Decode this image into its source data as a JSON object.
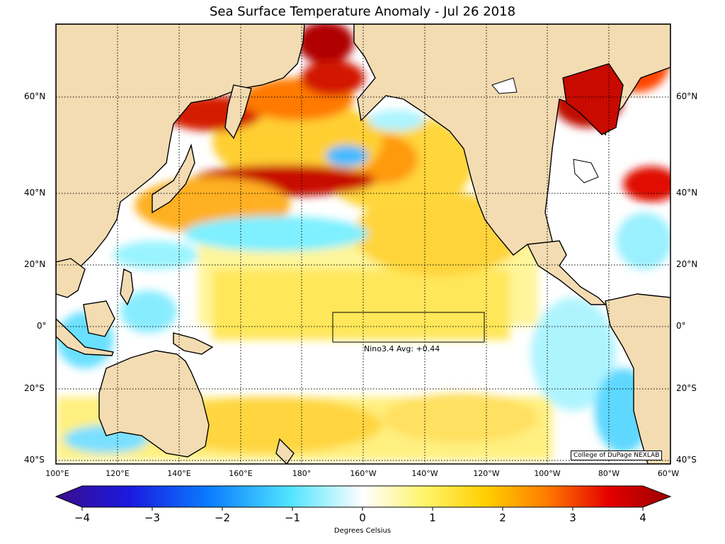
{
  "title": "Sea Surface Temperature Anomaly - Jul 26 2018",
  "lat_labels": [
    "60°N",
    "40°N",
    "20°N",
    "0°",
    "20°S",
    "40°S"
  ],
  "lon_labels": [
    "100°E",
    "120°E",
    "140°E",
    "160°E",
    "180°",
    "160°W",
    "140°W",
    "120°W",
    "100°W",
    "80°W",
    "60°W"
  ],
  "nino_label": "Nino3.4 Avg: +0.44",
  "credit": "College of DuPage NEXLAB",
  "colorbar": {
    "ticks": [
      "−4",
      "−3",
      "−2",
      "−1",
      "0",
      "1",
      "2",
      "3",
      "4"
    ],
    "label": "Degrees Celsius"
  },
  "colors": {
    "land": "#f3dcb2",
    "ocean_neutral": "#ffffff"
  }
}
